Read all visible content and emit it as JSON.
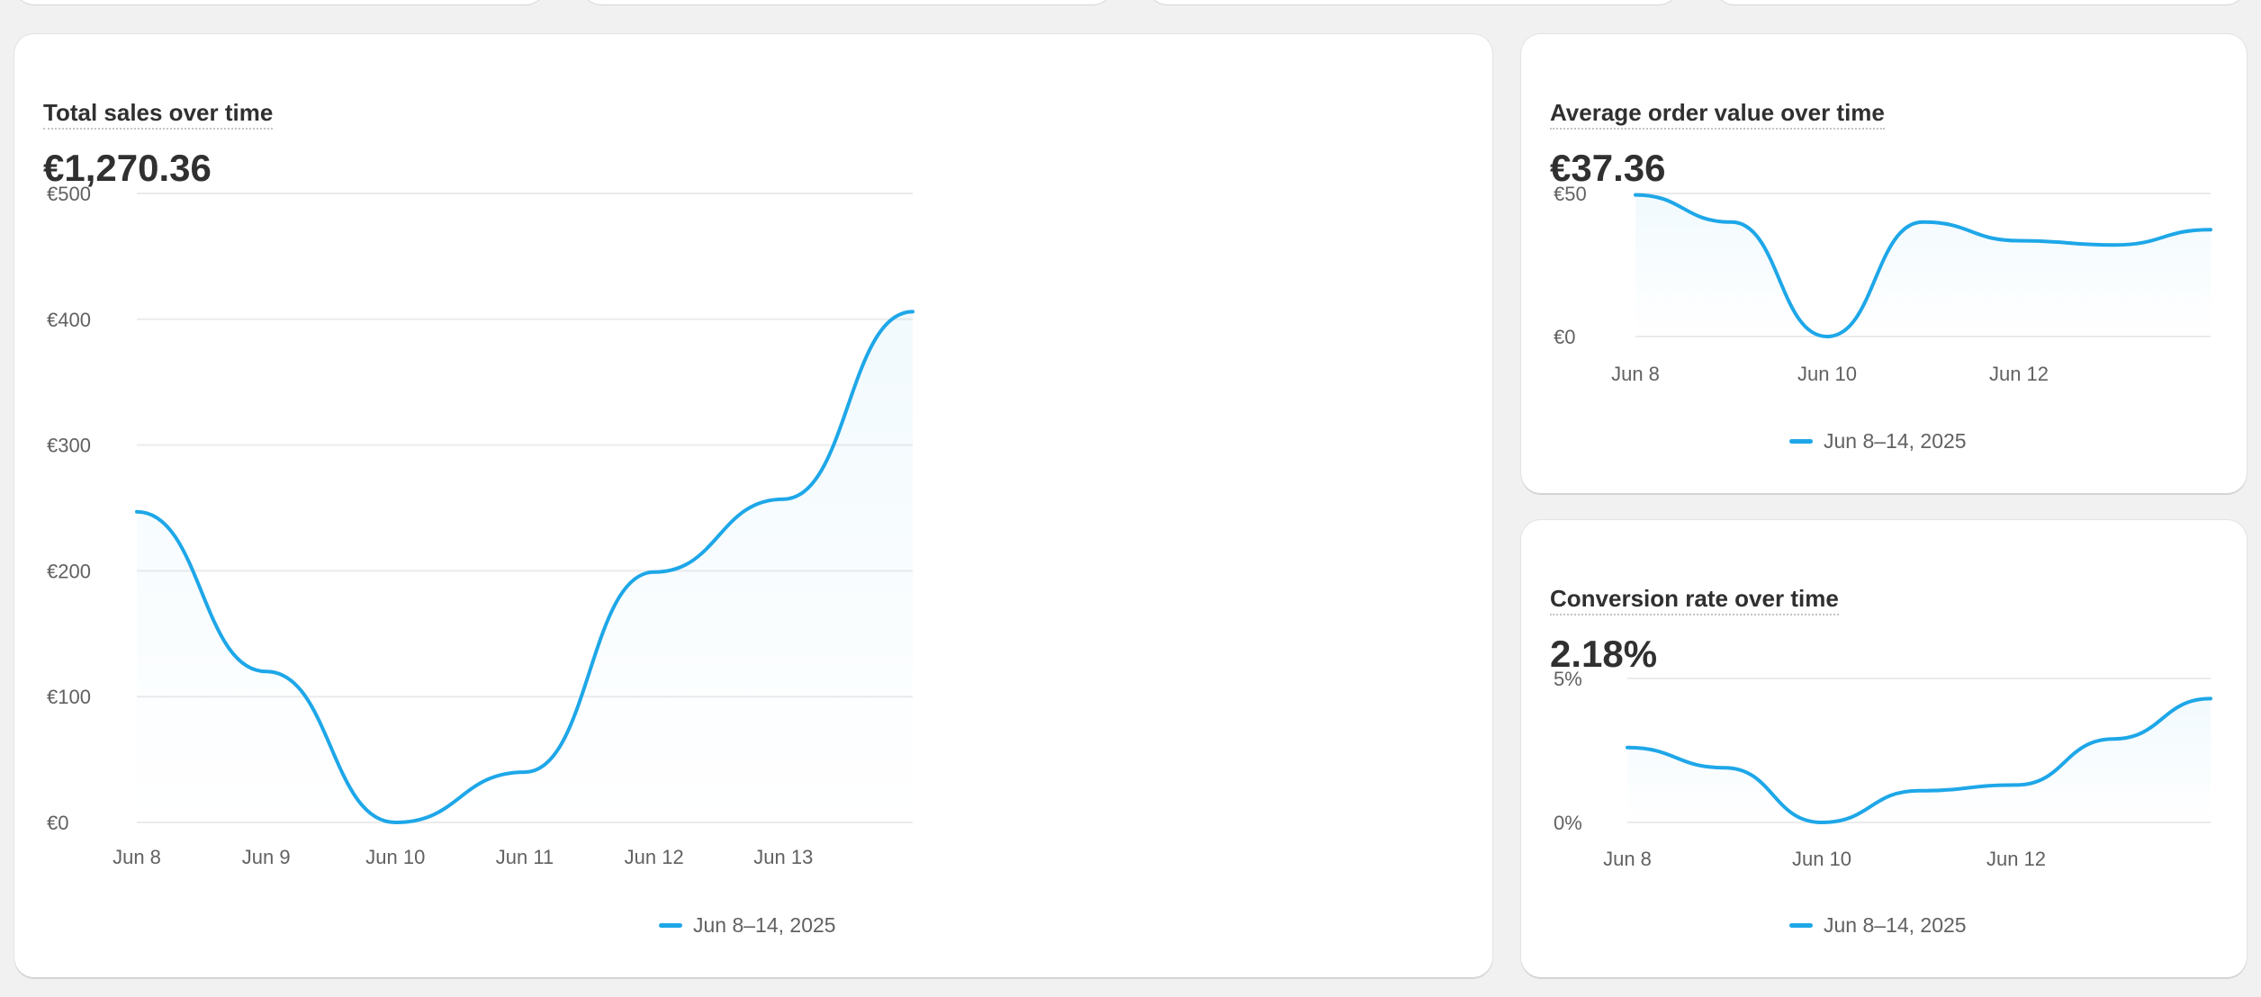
{
  "theme": {
    "accent": "#1ea7e8",
    "background": "#f1f1f1",
    "card": "#ffffff"
  },
  "cards": [
    {
      "title": "Total sales over time",
      "value": "€1,270.36",
      "legend": "Jun 8–14, 2025",
      "chart_data": {
        "type": "line",
        "title": "Total sales over time",
        "x": [
          "Jun 8",
          "Jun 9",
          "Jun 10",
          "Jun 11",
          "Jun 12",
          "Jun 13",
          "Jun 14"
        ],
        "x_tick_labels": [
          "Jun 8",
          "Jun 9",
          "Jun 10",
          "Jun 11",
          "Jun 12",
          "Jun 13"
        ],
        "y_ticks": [
          0,
          100,
          200,
          300,
          400,
          500
        ],
        "y_tick_labels": [
          "€0",
          "€100",
          "€200",
          "€300",
          "€400",
          "€500"
        ],
        "ylim": [
          0,
          500
        ],
        "grid": true,
        "legend_position": "bottom",
        "series": [
          {
            "name": "Jun 8–14, 2025",
            "values": [
              247,
              120,
              0,
              40,
              199,
              257,
              406
            ]
          }
        ]
      }
    },
    {
      "title": "Average order value over time",
      "value": "€37.36",
      "legend": "Jun 8–14, 2025",
      "chart_data": {
        "type": "line",
        "title": "Average order value over time",
        "x": [
          "Jun 8",
          "Jun 9",
          "Jun 10",
          "Jun 11",
          "Jun 12",
          "Jun 13",
          "Jun 14"
        ],
        "x_tick_labels": [
          "Jun 8",
          "Jun 10",
          "Jun 12"
        ],
        "y_ticks": [
          0,
          50
        ],
        "y_tick_labels": [
          "€0",
          "€50"
        ],
        "ylim": [
          0,
          50
        ],
        "grid": true,
        "legend_position": "bottom",
        "series": [
          {
            "name": "Jun 8–14, 2025",
            "values": [
              49.5,
              40,
              0,
              40,
              33.5,
              32,
              37.36
            ]
          }
        ]
      }
    },
    {
      "title": "Conversion rate over time",
      "value": "2.18%",
      "legend": "Jun 8–14, 2025",
      "chart_data": {
        "type": "line",
        "title": "Conversion rate over time",
        "x": [
          "Jun 8",
          "Jun 9",
          "Jun 10",
          "Jun 11",
          "Jun 12",
          "Jun 13",
          "Jun 14"
        ],
        "x_tick_labels": [
          "Jun 8",
          "Jun 10",
          "Jun 12"
        ],
        "y_ticks": [
          0,
          5
        ],
        "y_tick_labels": [
          "0%",
          "5%"
        ],
        "ylim": [
          0,
          5
        ],
        "grid": true,
        "legend_position": "bottom",
        "series": [
          {
            "name": "Jun 8–14, 2025",
            "values": [
              2.6,
              1.9,
              0,
              1.1,
              1.3,
              2.9,
              4.3
            ]
          }
        ]
      }
    }
  ]
}
